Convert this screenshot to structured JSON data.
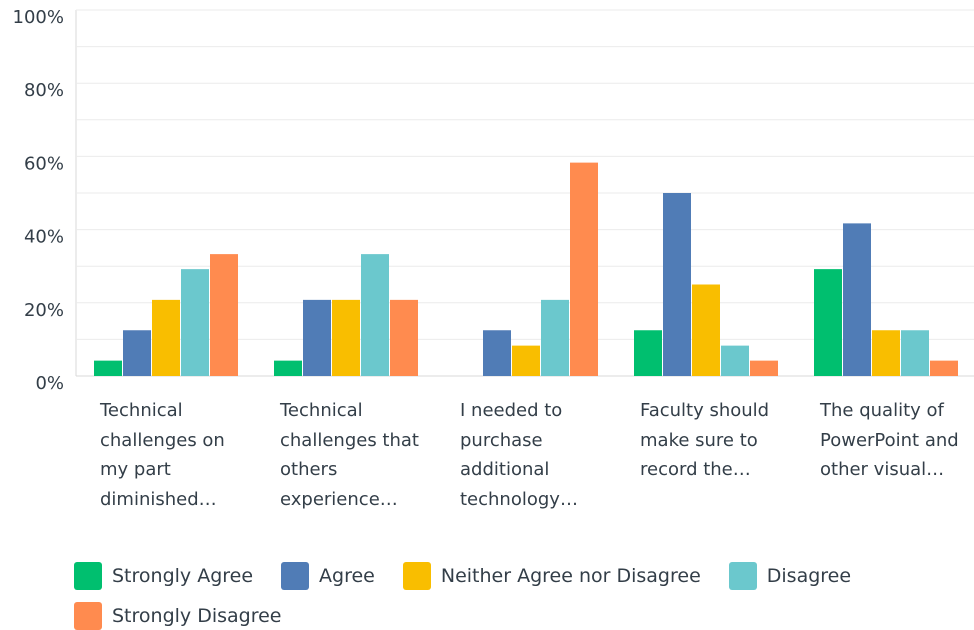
{
  "chart_data": {
    "type": "bar",
    "categories": [
      "Technical challenges on my part diminished…",
      "Technical challenges that others experience…",
      "I needed to purchase additional technology…",
      "Faculty should make sure to record the…",
      "The quality of PowerPoint and other visual…"
    ],
    "series": [
      {
        "name": "Strongly Agree",
        "color": "#00bf6f",
        "values": [
          4.2,
          4.2,
          0,
          12.5,
          29.2
        ]
      },
      {
        "name": "Agree",
        "color": "#507cb6",
        "values": [
          12.5,
          20.8,
          12.5,
          50,
          41.7
        ]
      },
      {
        "name": "Neither Agree nor Disagree",
        "color": "#f9be00",
        "values": [
          20.8,
          20.8,
          8.3,
          25,
          12.5
        ]
      },
      {
        "name": "Disagree",
        "color": "#6bc8cd",
        "values": [
          29.2,
          33.3,
          20.8,
          8.3,
          12.5
        ]
      },
      {
        "name": "Strongly Disagree",
        "color": "#ff8b4f",
        "values": [
          33.3,
          20.8,
          58.3,
          4.2,
          4.2
        ]
      }
    ],
    "ylim": [
      0,
      100
    ],
    "yticks": [
      {
        "value": 0,
        "label": "0%"
      },
      {
        "value": 20,
        "label": "20%"
      },
      {
        "value": 40,
        "label": "40%"
      },
      {
        "value": 60,
        "label": "60%"
      },
      {
        "value": 80,
        "label": "80%"
      },
      {
        "value": 100,
        "label": "100%"
      }
    ],
    "minor_yticks": [
      10,
      30,
      50,
      70,
      90
    ],
    "grid": true,
    "legend": "bottom"
  }
}
